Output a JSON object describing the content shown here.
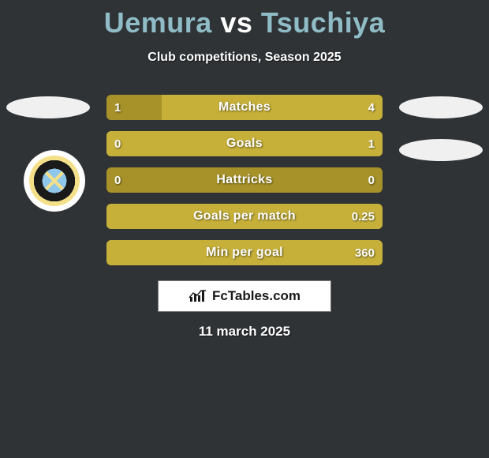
{
  "background_color": "#2f3336",
  "title": {
    "player1": "Uemura",
    "vs": "vs",
    "player2": "Tsuchiya",
    "player1_color": "#8fbcc6",
    "vs_color": "#ffffff",
    "player2_color": "#8fbcc6"
  },
  "subtitle": "Club competitions, Season 2025",
  "bar_colors": {
    "left": "#a69228",
    "right": "#c6b03a",
    "track": "#c6b03a"
  },
  "stats": [
    {
      "label": "Matches",
      "left_val": "1",
      "right_val": "4",
      "left_pct": 20,
      "right_pct": 80
    },
    {
      "label": "Goals",
      "left_val": "0",
      "right_val": "1",
      "left_pct": 0,
      "right_pct": 100
    },
    {
      "label": "Hattricks",
      "left_val": "0",
      "right_val": "0",
      "left_pct": 0,
      "right_pct": 0
    },
    {
      "label": "Goals per match",
      "left_val": "",
      "right_val": "0.25",
      "left_pct": 0,
      "right_pct": 100
    },
    {
      "label": "Min per goal",
      "left_val": "",
      "right_val": "360",
      "left_pct": 0,
      "right_pct": 100
    }
  ],
  "side_ellipse_color": "#f0f0f0",
  "brand": {
    "text": "FcTables.com",
    "box_bg": "#ffffff",
    "box_border": "#7a7a7a",
    "icon_color": "#1a1a1a",
    "text_color": "#1a1a1a"
  },
  "date": "11 march 2025"
}
